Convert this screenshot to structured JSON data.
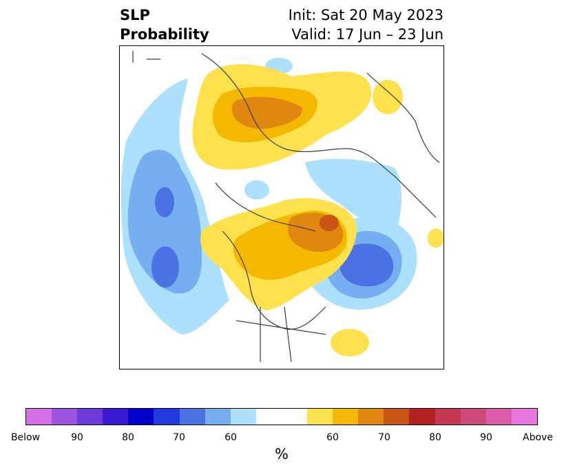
{
  "title": {
    "left_line1": "SLP",
    "left_line2": "Probability",
    "right_line1": "Init: Sat 20 May 2023",
    "right_line2": "Valid: 17 Jun – 23 Jun"
  },
  "colorbar": {
    "below_colors": [
      "#d36ee8",
      "#9b55e0",
      "#6a3bd6",
      "#3b1ad6",
      "#0000cd",
      "#2239dd",
      "#4a72e3",
      "#76aef2",
      "#ade0fc"
    ],
    "neutral_color": "#ffffff",
    "above_colors": [
      "#ffe04d",
      "#f5b800",
      "#e0870f",
      "#c85514",
      "#b22222",
      "#c4374e",
      "#cc4b7b",
      "#db5ca8",
      "#e878df"
    ],
    "tick_labels": [
      "Below",
      "90",
      "80",
      "70",
      "60",
      "60",
      "70",
      "80",
      "90",
      "Above"
    ],
    "unit_label": "%"
  }
}
